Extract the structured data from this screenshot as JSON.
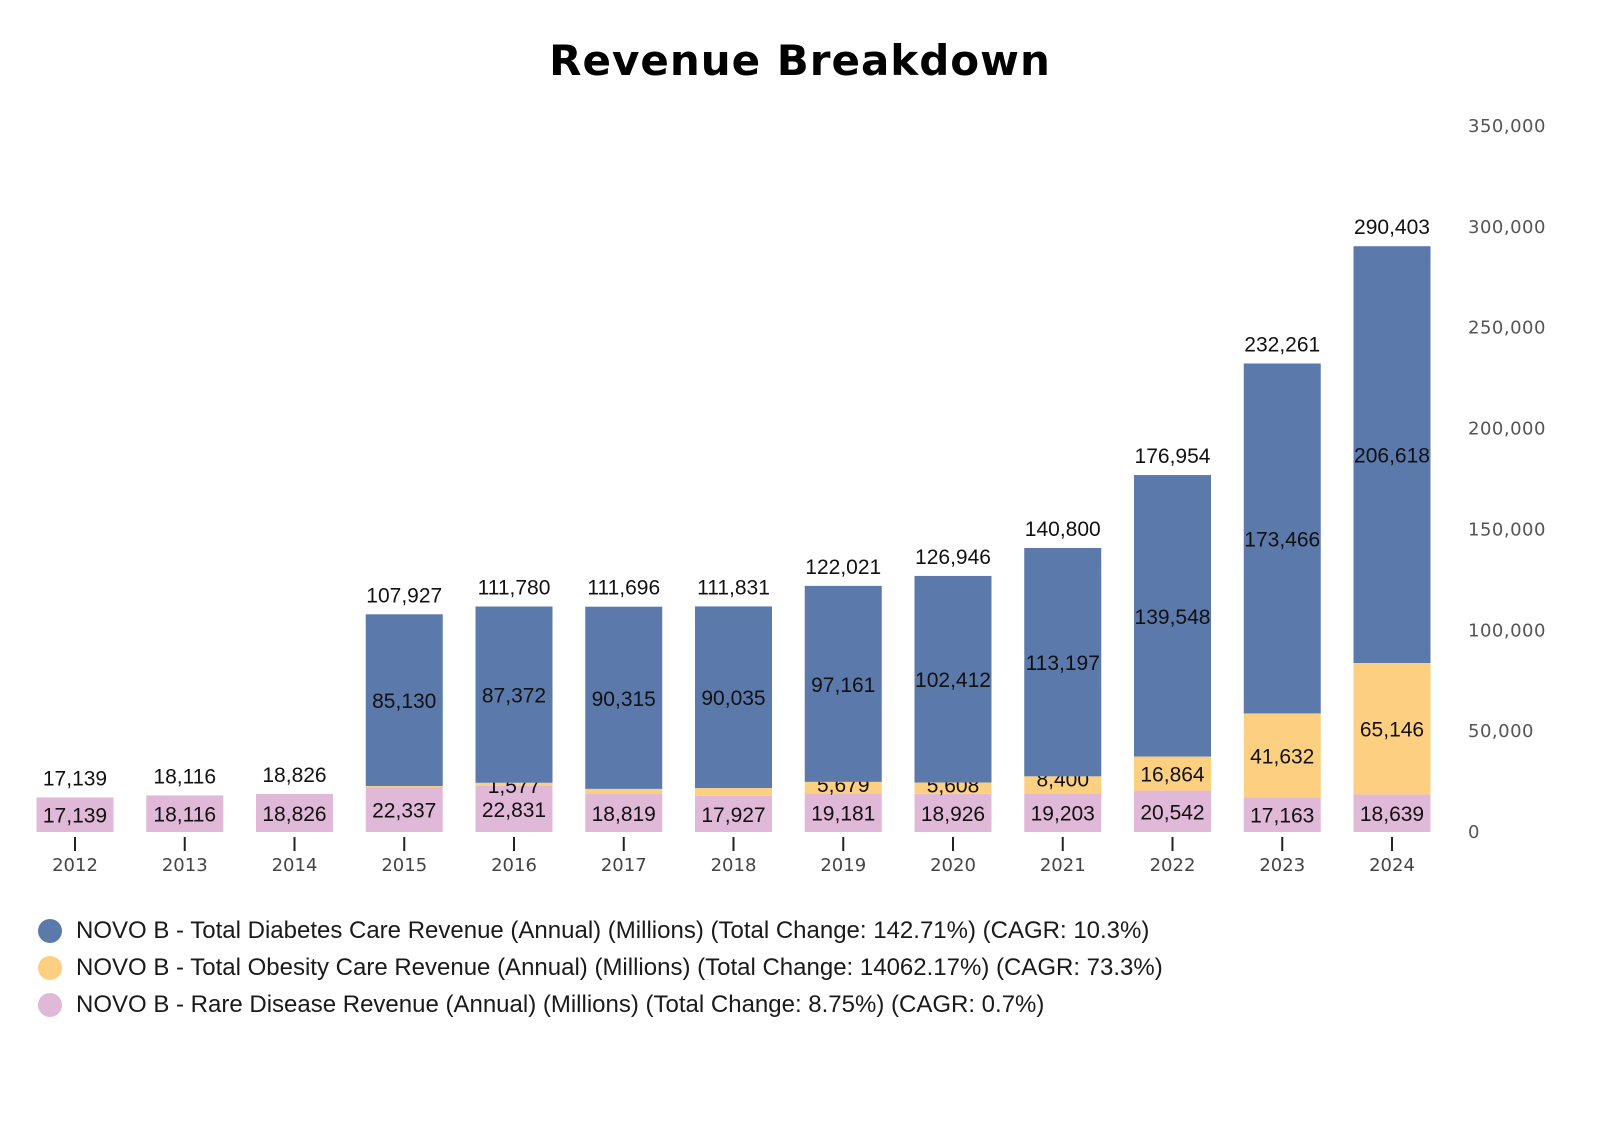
{
  "chart_data": {
    "type": "bar",
    "stacked": true,
    "title": "Revenue Breakdown",
    "categories": [
      "2012",
      "2013",
      "2014",
      "2015",
      "2016",
      "2017",
      "2018",
      "2019",
      "2020",
      "2021",
      "2022",
      "2023",
      "2024"
    ],
    "series": [
      {
        "name": "NOVO B - Rare Disease Revenue (Annual) (Millions) (Total Change: 8.75%) (CAGR: 0.7%)",
        "color": "#e0b8d8",
        "values": [
          17139,
          18116,
          18826,
          22337,
          22831,
          18819,
          17927,
          19181,
          18926,
          19203,
          20542,
          17163,
          18639
        ],
        "labels": [
          "17,139",
          "18,116",
          "18,826",
          "22,337",
          "22,831",
          "18,819",
          "17,927",
          "19,181",
          "18,926",
          "19,203",
          "20,542",
          "17,163",
          "18,639"
        ]
      },
      {
        "name": "NOVO B - Total Obesity Care Revenue (Annual) (Millions) (Total Change: 14062.17%) (CAGR: 73.3%)",
        "color": "#fdd081",
        "values": [
          0,
          0,
          0,
          460,
          1577,
          2562,
          3869,
          5679,
          5608,
          8400,
          16864,
          41632,
          65146
        ],
        "labels": [
          "",
          "",
          "",
          "",
          "1,577",
          "",
          "",
          "5,679",
          "5,608",
          "8,400",
          "16,864",
          "41,632",
          "65,146"
        ]
      },
      {
        "name": "NOVO B - Total Diabetes Care Revenue (Annual) (Millions) (Total Change: 142.71%) (CAGR: 10.3%)",
        "color": "#5b79aa",
        "values": [
          0,
          0,
          0,
          85130,
          87372,
          90315,
          90035,
          97161,
          102412,
          113197,
          139548,
          173466,
          206618
        ],
        "labels": [
          "",
          "",
          "",
          "85,130",
          "87,372",
          "90,315",
          "90,035",
          "97,161",
          "102,412",
          "113,197",
          "139,548",
          "173,466",
          "206,618"
        ]
      }
    ],
    "totals": [
      17139,
      18116,
      18826,
      107927,
      111780,
      111696,
      111831,
      122021,
      126946,
      140800,
      176954,
      232261,
      290403
    ],
    "total_labels": [
      "17,139",
      "18,116",
      "18,826",
      "107,927",
      "111,780",
      "111,696",
      "111,831",
      "122,021",
      "126,946",
      "140,800",
      "176,954",
      "232,261",
      "290,403"
    ],
    "y_axis": {
      "position": "right",
      "ticks": [
        0,
        50000,
        100000,
        150000,
        200000,
        250000,
        300000,
        350000
      ],
      "tick_labels": [
        "0",
        "50,000",
        "100,000",
        "150,000",
        "200,000",
        "250,000",
        "300,000",
        "350,000"
      ],
      "ylim": [
        0,
        350000
      ]
    },
    "xlabel": "",
    "ylabel": "",
    "grid": false,
    "legend_position": "bottom-left"
  },
  "legend": [
    {
      "label": "NOVO B - Total Diabetes Care Revenue (Annual) (Millions) (Total Change: 142.71%) (CAGR: 10.3%)",
      "color": "#5b79aa"
    },
    {
      "label": "NOVO B - Total Obesity Care Revenue (Annual) (Millions) (Total Change: 14062.17%) (CAGR: 73.3%)",
      "color": "#fdd081"
    },
    {
      "label": "NOVO B - Rare Disease Revenue (Annual) (Millions) (Total Change: 8.75%) (CAGR: 0.7%)",
      "color": "#e0b8d8"
    }
  ]
}
